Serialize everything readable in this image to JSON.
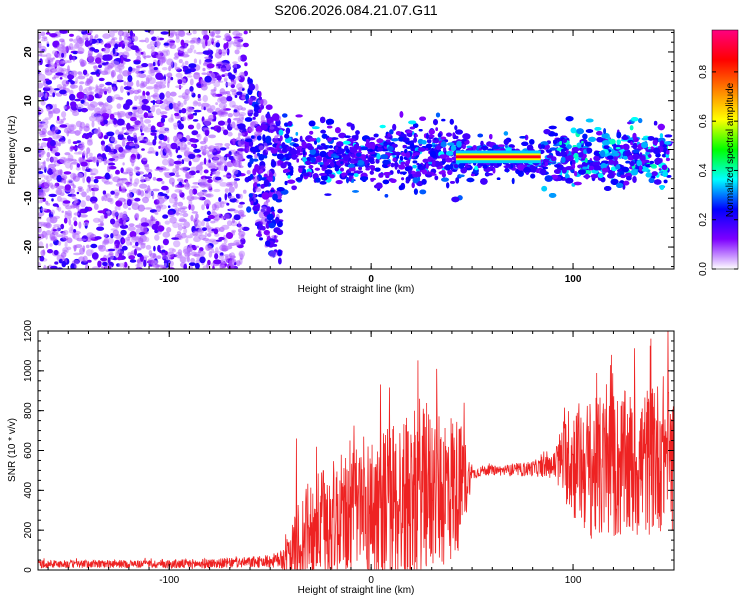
{
  "title": "S206.2026.084.21.07.G11",
  "chart_data": [
    {
      "type": "heatmap",
      "title": "S206.2026.084.21.07.G11",
      "xlabel": "Height of straight line (km)",
      "ylabel": "Frequency (Hz)",
      "xlim": [
        -165,
        150
      ],
      "ylim": [
        -24.5,
        24.5
      ],
      "xticks": [
        -100,
        0,
        100
      ],
      "xtick_labels": [
        "-100",
        "0",
        "100"
      ],
      "yticks": [
        -20,
        -10,
        0,
        10,
        20
      ],
      "ytick_labels": [
        "-20",
        "-10",
        "0",
        "10",
        "20"
      ],
      "colorbar": {
        "label": "Normalized spectral amplitude",
        "range": [
          0.0,
          0.97
        ],
        "ticks": [
          0.0,
          0.2,
          0.4,
          0.6,
          0.8
        ],
        "tick_labels": [
          "0.0",
          "0.2",
          "0.4",
          "0.6",
          "0.8"
        ],
        "colors": [
          "#ffffff",
          "#7d00ff",
          "#0000ff",
          "#00ffff",
          "#00ff00",
          "#ffff00",
          "#ff8000",
          "#ff0000",
          "#ff0080"
        ]
      },
      "features": {
        "noise_region_x": [
          -165,
          -62
        ],
        "transition_x": [
          -62,
          -45
        ],
        "band_x": [
          -45,
          148
        ],
        "band_freq_center": -1.5,
        "bright_line_x": [
          42,
          84
        ],
        "bright_line_freq": -1.5,
        "bright_line_amplitude": 0.9
      }
    },
    {
      "type": "line",
      "xlabel": "Height of straight line (km)",
      "ylabel": "SNR (10 * v/v)",
      "xlim": [
        -165,
        150
      ],
      "ylim": [
        0,
        1200
      ],
      "xticks": [
        -100,
        0,
        100
      ],
      "xtick_labels": [
        "-100",
        "0",
        "100"
      ],
      "yticks": [
        0,
        200,
        400,
        600,
        800,
        1000,
        1200
      ],
      "ytick_labels": [
        "0",
        "200",
        "400",
        "600",
        "800",
        "1000",
        "1200"
      ],
      "color": "#ee2222",
      "series": [
        {
          "name": "SNR",
          "x": [
            -165,
            -150,
            -130,
            -110,
            -90,
            -70,
            -55,
            -45,
            -40,
            -35,
            -30,
            -20,
            -10,
            0,
            10,
            20,
            30,
            40,
            45,
            50,
            55,
            60,
            70,
            80,
            90,
            95,
            100,
            110,
            120,
            130,
            140,
            146,
            150
          ],
          "y": [
            30,
            30,
            30,
            30,
            30,
            35,
            40,
            50,
            70,
            150,
            200,
            250,
            280,
            300,
            330,
            370,
            400,
            420,
            430,
            480,
            500,
            500,
            500,
            510,
            520,
            560,
            550,
            500,
            520,
            520,
            560,
            600,
            470
          ],
          "spread": [
            20,
            20,
            20,
            20,
            25,
            25,
            30,
            40,
            120,
            230,
            260,
            300,
            330,
            380,
            430,
            430,
            420,
            400,
            300,
            30,
            25,
            25,
            30,
            40,
            60,
            200,
            300,
            360,
            380,
            380,
            380,
            400,
            300
          ],
          "peaks": [
            {
              "x": -37,
              "y": 660
            },
            {
              "x": 24,
              "y": 860
            },
            {
              "x": 46,
              "y": 840
            },
            {
              "x": 119,
              "y": 1080
            },
            {
              "x": 147,
              "y": 1220
            }
          ]
        }
      ]
    }
  ]
}
